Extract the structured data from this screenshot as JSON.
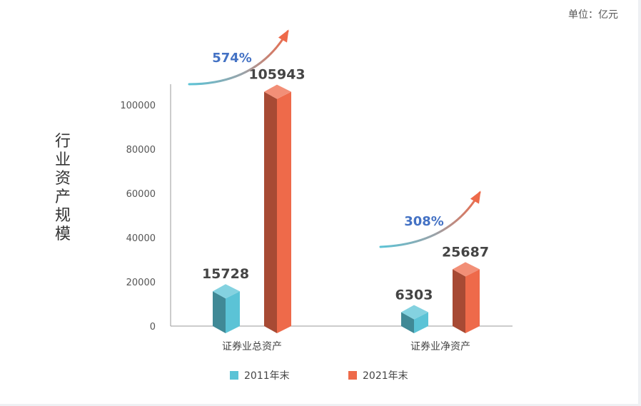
{
  "unit_label": "单位：亿元",
  "chart_data": {
    "type": "bar",
    "ylabel": "行业资产规模",
    "categories": [
      "证券业总资产",
      "证券业净资产"
    ],
    "series": [
      {
        "name": "2011年末",
        "values": [
          15728,
          6303
        ],
        "color": "#5bc3d6"
      },
      {
        "name": "2021年末",
        "values": [
          105943,
          25687
        ],
        "color": "#ee6a4a"
      }
    ],
    "growth_labels": [
      "574%",
      "308%"
    ],
    "yticks": [
      0,
      20000,
      40000,
      60000,
      80000,
      100000
    ],
    "ylim": [
      0,
      110000
    ],
    "grid": false,
    "legend_position": "bottom"
  }
}
